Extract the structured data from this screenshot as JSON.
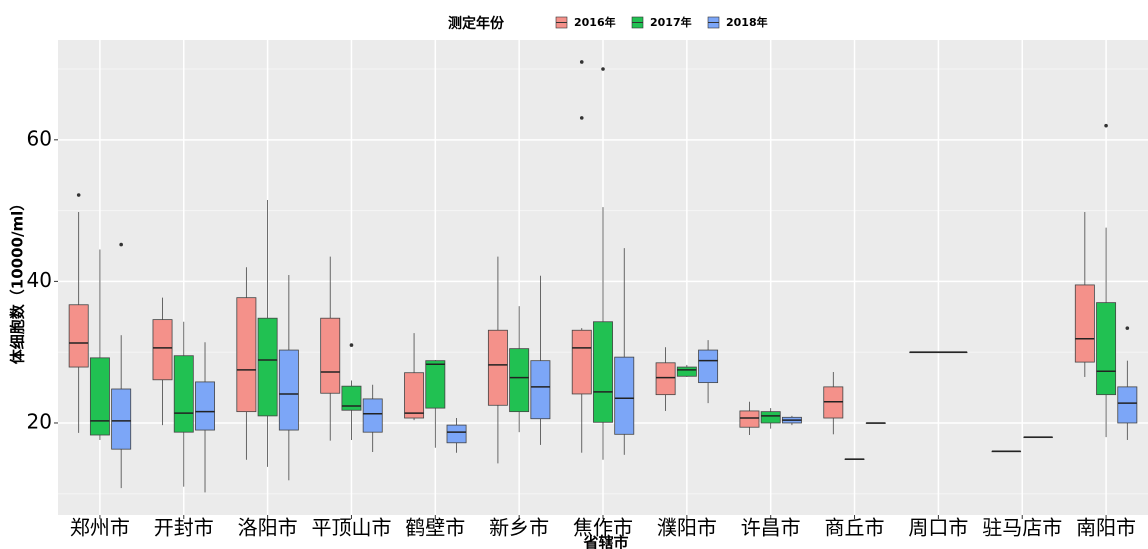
{
  "chart_data": {
    "type": "boxplot",
    "legend_title": "测定年份",
    "x_label": "省辖市",
    "y_label": "体细胞数（10000/ml）",
    "categories": [
      "郑州市",
      "开封市",
      "洛阳市",
      "平顶山市",
      "鹤壁市",
      "新乡市",
      "焦作市",
      "濮阳市",
      "许昌市",
      "商丘市",
      "周口市",
      "驻马店市",
      "南阳市"
    ],
    "ylim": [
      7,
      74.1
    ],
    "yticks": [
      20,
      40,
      60
    ],
    "minor_yticks": [
      10,
      30,
      50,
      70
    ],
    "grid": true,
    "legend_position": "top",
    "series": [
      {
        "name": "2016年",
        "color": "#f4918a",
        "values": [
          {
            "min": 18.6,
            "q1": 27.9,
            "median": 31.3,
            "q3": 36.7,
            "max": 49.8,
            "outliers": [
              52.2
            ]
          },
          {
            "min": 19.7,
            "q1": 26.1,
            "median": 30.6,
            "q3": 34.6,
            "max": 37.7,
            "outliers": []
          },
          {
            "min": 14.8,
            "q1": 21.6,
            "median": 27.5,
            "q3": 37.7,
            "max": 42,
            "outliers": []
          },
          {
            "min": 17.5,
            "q1": 24.2,
            "median": 27.2,
            "q3": 34.8,
            "max": 43.5,
            "outliers": []
          },
          {
            "min": 20.4,
            "q1": 20.7,
            "median": 21.4,
            "q3": 27.1,
            "max": 32.7,
            "outliers": []
          },
          {
            "min": 14.3,
            "q1": 22.5,
            "median": 28.2,
            "q3": 33.1,
            "max": 43.5,
            "outliers": []
          },
          {
            "min": 15.8,
            "q1": 24.1,
            "median": 30.6,
            "q3": 33.1,
            "max": 33.4,
            "outliers": [
              71,
              63.1
            ]
          },
          {
            "min": 21.7,
            "q1": 24,
            "median": 26.4,
            "q3": 28.5,
            "max": 30.7,
            "outliers": []
          },
          {
            "min": 18.3,
            "q1": 19.4,
            "median": 20.7,
            "q3": 21.7,
            "max": 23,
            "outliers": []
          },
          {
            "min": 18.4,
            "q1": 20.7,
            "median": 23,
            "q3": 25.1,
            "max": 27.2,
            "outliers": []
          },
          {
            "min": 30,
            "q1": 30,
            "median": 30,
            "q3": 30,
            "max": 30,
            "outliers": []
          },
          null,
          {
            "min": 26.5,
            "q1": 28.6,
            "median": 31.9,
            "q3": 39.5,
            "max": 49.8,
            "outliers": []
          }
        ]
      },
      {
        "name": "2017年",
        "color": "#21c152",
        "values": [
          {
            "min": 17.6,
            "q1": 18.3,
            "median": 20.3,
            "q3": 29.2,
            "max": 44.5,
            "outliers": []
          },
          {
            "min": 11,
            "q1": 18.7,
            "median": 21.4,
            "q3": 29.5,
            "max": 34.3,
            "outliers": []
          },
          {
            "min": 13.8,
            "q1": 21,
            "median": 28.9,
            "q3": 34.8,
            "max": 51.5,
            "outliers": []
          },
          {
            "min": 17.6,
            "q1": 21.8,
            "median": 22.4,
            "q3": 25.2,
            "max": 26,
            "outliers": [
              31
            ]
          },
          {
            "min": 16.5,
            "q1": 22.1,
            "median": 28.3,
            "q3": 28.8,
            "max": 28.9,
            "outliers": []
          },
          {
            "min": 18.7,
            "q1": 21.6,
            "median": 26.4,
            "q3": 30.5,
            "max": 36.5,
            "outliers": []
          },
          {
            "min": 14.8,
            "q1": 20.1,
            "median": 24.4,
            "q3": 34.3,
            "max": 50.5,
            "outliers": [
              70
            ]
          },
          {
            "min": 26.5,
            "q1": 26.6,
            "median": 27.5,
            "q3": 27.9,
            "max": 28.2,
            "outliers": []
          },
          {
            "min": 19.2,
            "q1": 20,
            "median": 21,
            "q3": 21.6,
            "max": 22.1,
            "outliers": []
          },
          {
            "min": 14.9,
            "q1": 14.9,
            "median": 14.9,
            "q3": 14.9,
            "max": 14.9,
            "outliers": []
          },
          null,
          {
            "min": 16,
            "q1": 16,
            "median": 16,
            "q3": 16,
            "max": 16,
            "outliers": []
          },
          {
            "min": 18,
            "q1": 24,
            "median": 27.3,
            "q3": 37,
            "max": 47.6,
            "outliers": [
              62
            ]
          }
        ]
      },
      {
        "name": "2018年",
        "color": "#7ca6f7",
        "values": [
          {
            "min": 10.8,
            "q1": 16.3,
            "median": 20.3,
            "q3": 24.8,
            "max": 32.4,
            "outliers": [
              45.2
            ]
          },
          {
            "min": 10.2,
            "q1": 19,
            "median": 21.6,
            "q3": 25.8,
            "max": 31.4,
            "outliers": []
          },
          {
            "min": 11.9,
            "q1": 19,
            "median": 24.1,
            "q3": 30.3,
            "max": 40.9,
            "outliers": []
          },
          {
            "min": 15.9,
            "q1": 18.7,
            "median": 21.3,
            "q3": 23.4,
            "max": 25.4,
            "outliers": []
          },
          {
            "min": 15.8,
            "q1": 17.2,
            "median": 18.7,
            "q3": 19.7,
            "max": 20.7,
            "outliers": []
          },
          {
            "min": 16.9,
            "q1": 20.6,
            "median": 25.1,
            "q3": 28.8,
            "max": 40.8,
            "outliers": []
          },
          {
            "min": 15.5,
            "q1": 18.4,
            "median": 23.5,
            "q3": 29.3,
            "max": 44.7,
            "outliers": []
          },
          {
            "min": 22.8,
            "q1": 25.7,
            "median": 28.8,
            "q3": 30.3,
            "max": 31.7,
            "outliers": []
          },
          {
            "min": 19.7,
            "q1": 20,
            "median": 20.4,
            "q3": 20.8,
            "max": 21,
            "outliers": []
          },
          {
            "min": 20,
            "q1": 20,
            "median": 20,
            "q3": 20,
            "max": 20,
            "outliers": []
          },
          null,
          {
            "min": 18,
            "q1": 18,
            "median": 18,
            "q3": 18,
            "max": 18,
            "outliers": []
          },
          {
            "min": 17.6,
            "q1": 20,
            "median": 22.8,
            "q3": 25.1,
            "max": 28.8,
            "outliers": [
              33.4
            ]
          }
        ]
      }
    ]
  }
}
